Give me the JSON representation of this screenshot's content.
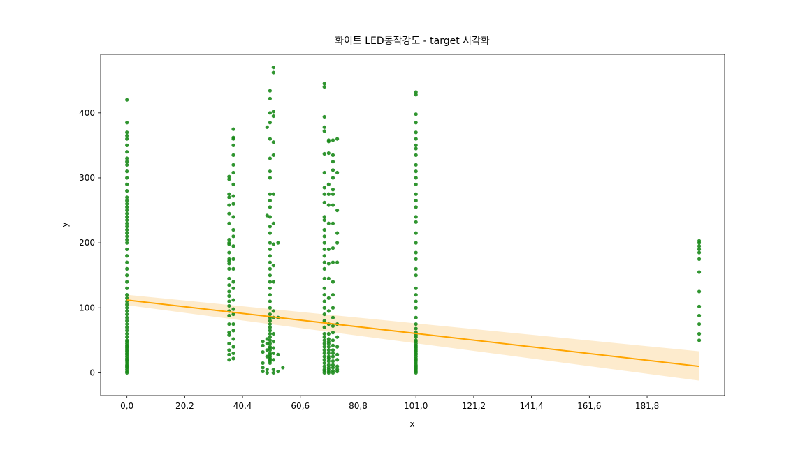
{
  "chart_data": {
    "type": "scatter",
    "title": "화이트 LED동작강도 - target 시각화",
    "xlabel": "x",
    "ylabel": "y",
    "xlim": [
      -9.2,
      208.9
    ],
    "ylim": [
      -35,
      490
    ],
    "x_ticks": [
      0.0,
      20.2,
      40.4,
      60.6,
      80.8,
      101.0,
      121.2,
      141.4,
      161.6,
      181.8
    ],
    "x_tick_labels": [
      "0,0",
      "20,2",
      "40,4",
      "60,6",
      "80,8",
      "101,0",
      "121,2",
      "141,4",
      "161,6",
      "181,8"
    ],
    "y_ticks": [
      0,
      100,
      200,
      300,
      400
    ],
    "y_tick_labels": [
      "0",
      "100",
      "200",
      "300",
      "400"
    ],
    "grid": false,
    "point_color": "#1a8a1a",
    "line_color": "#ffa500",
    "band_color": "#fde8c4",
    "regression": {
      "x": [
        0,
        200
      ],
      "y": [
        112,
        10
      ],
      "ci_lower": [
        104,
        -12
      ],
      "ci_upper": [
        120,
        33
      ]
    },
    "series": [
      {
        "groups": [
          {
            "x": 0.0,
            "y": [
              0,
              2,
              5,
              8,
              10,
              12,
              15,
              18,
              20,
              22,
              25,
              28,
              30,
              33,
              35,
              38,
              40,
              42,
              45,
              48,
              50,
              55,
              60,
              65,
              70,
              75,
              80,
              85,
              90,
              95,
              100,
              105,
              110,
              115,
              120,
              130,
              140,
              150,
              160,
              170,
              180,
              190,
              200,
              205,
              210,
              215,
              220,
              225,
              230,
              235,
              240,
              245,
              250,
              255,
              260,
              265,
              270,
              280,
              290,
              300,
              310,
              320,
              325,
              330,
              340,
              350,
              360,
              365,
              370,
              385,
              420
            ]
          },
          {
            "x": 35.7,
            "y": [
              20,
              28,
              35,
              45,
              58,
              62,
              75,
              88,
              95,
              103,
              110,
              118,
              125,
              135,
              145,
              160,
              168,
              172,
              175,
              185,
              198,
              200,
              205,
              230,
              245,
              258,
              270,
              275,
              298,
              302
            ]
          },
          {
            "x": 37.2,
            "y": [
              22,
              30,
              40,
              52,
              65,
              75,
              90,
              98,
              112,
              130,
              140,
              160,
              175,
              195,
              210,
              220,
              240,
              260,
              272,
              290,
              308,
              320,
              335,
              350,
              360,
              362,
              375
            ]
          },
          {
            "x": 47.5,
            "y": [
              2,
              8,
              15,
              32,
              42,
              48
            ]
          },
          {
            "x": 49.0,
            "y": [
              0,
              5,
              25,
              35,
              45,
              52,
              242,
              378
            ]
          },
          {
            "x": 50.0,
            "y": [
              15,
              18,
              20,
              22,
              25,
              28,
              30,
              35,
              38,
              40,
              45,
              50,
              55,
              60,
              65,
              70,
              75,
              80,
              85,
              90,
              100,
              110,
              120,
              130,
              140,
              150,
              160,
              170,
              180,
              190,
              200,
              215,
              225,
              240,
              255,
              265,
              275,
              300,
              310,
              330,
              360,
              385,
              400,
              422,
              434
            ]
          },
          {
            "x": 51.2,
            "y": [
              0,
              5,
              20,
              30,
              38,
              48,
              60,
              85,
              95,
              140,
              165,
              198,
              230,
              275,
              335,
              355,
              395,
              402,
              462,
              470
            ]
          },
          {
            "x": 52.8,
            "y": [
              2,
              28,
              85,
              200
            ]
          },
          {
            "x": 54.5,
            "y": [
              8
            ]
          },
          {
            "x": 69.0,
            "y": [
              0,
              3,
              5,
              10,
              15,
              20,
              25,
              30,
              35,
              40,
              45,
              50,
              55,
              60,
              70,
              80,
              90,
              100,
              110,
              120,
              130,
              145,
              160,
              170,
              180,
              190,
              200,
              210,
              220,
              235,
              240,
              262,
              275,
              285,
              308,
              337,
              372,
              378,
              394,
              440,
              445
            ]
          },
          {
            "x": 70.5,
            "y": [
              0,
              2,
              5,
              8,
              12,
              18,
              22,
              25,
              30,
              35,
              40,
              45,
              48,
              52,
              60,
              75,
              95,
              115,
              145,
              168,
              190,
              230,
              258,
              275,
              290,
              338,
              356,
              358
            ]
          },
          {
            "x": 72.0,
            "y": [
              0,
              3,
              8,
              12,
              18,
              25,
              30,
              35,
              42,
              50,
              62,
              72,
              85,
              100,
              120,
              140,
              170,
              192,
              230,
              258,
              275,
              282,
              300,
              312,
              325,
              335,
              358
            ]
          },
          {
            "x": 73.5,
            "y": [
              2,
              5,
              10,
              20,
              28,
              40,
              55,
              75,
              170,
              200,
              215,
              250,
              308,
              360
            ]
          },
          {
            "x": 101.0,
            "y": [
              0,
              2,
              4,
              6,
              8,
              10,
              12,
              15,
              18,
              20,
              22,
              25,
              28,
              30,
              33,
              35,
              38,
              40,
              42,
              45,
              48,
              50,
              55,
              58,
              62,
              68,
              75,
              85,
              100,
              110,
              120,
              130,
              150,
              160,
              175,
              185,
              200,
              215,
              232,
              240,
              255,
              265,
              275,
              290,
              300,
              310,
              320,
              335,
              345,
              350,
              360,
              370,
              385,
              398,
              428,
              432
            ]
          },
          {
            "x": 200.0,
            "y": [
              50,
              60,
              75,
              88,
              102,
              125,
              155,
              175,
              185,
              190,
              195,
              200,
              203
            ]
          }
        ]
      }
    ]
  }
}
